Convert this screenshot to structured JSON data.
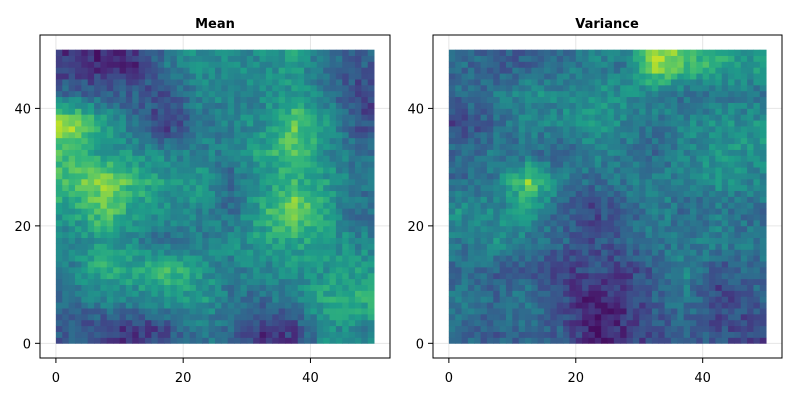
{
  "chart_data": [
    {
      "type": "heatmap",
      "title": "Mean",
      "xlabel": "",
      "ylabel": "",
      "xlim": [
        -2.5,
        52.5
      ],
      "ylim": [
        -2.5,
        52.5
      ],
      "xticks": [
        0,
        20,
        40
      ],
      "yticks": [
        0,
        20,
        40
      ],
      "grid": true,
      "colormap": "viridis",
      "extent": {
        "x": [
          0,
          50
        ],
        "y": [
          0,
          50
        ]
      },
      "cells": 50,
      "coarse_grid_note_rows": "top-to-bottom",
      "values_coarse": [
        [
          0.15,
          0.1,
          0.15,
          0.4,
          0.5,
          0.45,
          0.5,
          0.55,
          0.35,
          0.3
        ],
        [
          0.35,
          0.3,
          0.3,
          0.25,
          0.45,
          0.45,
          0.45,
          0.55,
          0.4,
          0.2
        ],
        [
          0.85,
          0.6,
          0.35,
          0.15,
          0.4,
          0.45,
          0.5,
          0.75,
          0.55,
          0.25
        ],
        [
          0.7,
          0.55,
          0.5,
          0.45,
          0.45,
          0.4,
          0.6,
          0.7,
          0.5,
          0.35
        ],
        [
          0.7,
          0.85,
          0.65,
          0.55,
          0.55,
          0.35,
          0.5,
          0.65,
          0.55,
          0.4
        ],
        [
          0.55,
          0.75,
          0.55,
          0.5,
          0.45,
          0.35,
          0.6,
          0.85,
          0.55,
          0.35
        ],
        [
          0.45,
          0.55,
          0.45,
          0.35,
          0.4,
          0.5,
          0.55,
          0.6,
          0.55,
          0.45
        ],
        [
          0.45,
          0.65,
          0.6,
          0.7,
          0.55,
          0.4,
          0.45,
          0.5,
          0.5,
          0.55
        ],
        [
          0.35,
          0.45,
          0.45,
          0.5,
          0.55,
          0.4,
          0.35,
          0.45,
          0.6,
          0.65
        ],
        [
          0.3,
          0.2,
          0.15,
          0.25,
          0.4,
          0.35,
          0.15,
          0.2,
          0.5,
          0.45
        ]
      ]
    },
    {
      "type": "heatmap",
      "title": "Variance",
      "xlabel": "",
      "ylabel": "",
      "xlim": [
        -2.5,
        52.5
      ],
      "ylim": [
        -2.5,
        52.5
      ],
      "xticks": [
        0,
        20,
        40
      ],
      "yticks": [
        0,
        20,
        40
      ],
      "grid": true,
      "colormap": "viridis",
      "extent": {
        "x": [
          0,
          50
        ],
        "y": [
          0,
          50
        ]
      },
      "cells": 50,
      "coarse_grid_note_rows": "top-to-bottom",
      "values_coarse": [
        [
          0.35,
          0.3,
          0.3,
          0.35,
          0.45,
          0.4,
          0.9,
          0.7,
          0.6,
          0.55
        ],
        [
          0.35,
          0.4,
          0.5,
          0.45,
          0.5,
          0.5,
          0.45,
          0.35,
          0.4,
          0.4
        ],
        [
          0.2,
          0.35,
          0.45,
          0.45,
          0.55,
          0.45,
          0.4,
          0.45,
          0.5,
          0.5
        ],
        [
          0.35,
          0.4,
          0.35,
          0.3,
          0.45,
          0.4,
          0.35,
          0.45,
          0.55,
          0.5
        ],
        [
          0.35,
          0.4,
          0.8,
          0.45,
          0.35,
          0.4,
          0.45,
          0.4,
          0.5,
          0.45
        ],
        [
          0.5,
          0.45,
          0.55,
          0.3,
          0.2,
          0.3,
          0.45,
          0.35,
          0.4,
          0.35
        ],
        [
          0.4,
          0.5,
          0.4,
          0.35,
          0.25,
          0.3,
          0.4,
          0.4,
          0.45,
          0.4
        ],
        [
          0.35,
          0.3,
          0.3,
          0.15,
          0.25,
          0.2,
          0.3,
          0.45,
          0.25,
          0.35
        ],
        [
          0.4,
          0.35,
          0.4,
          0.25,
          0.1,
          0.15,
          0.3,
          0.4,
          0.2,
          0.3
        ],
        [
          0.35,
          0.3,
          0.35,
          0.3,
          0.1,
          0.15,
          0.25,
          0.3,
          0.25,
          0.2
        ]
      ]
    }
  ]
}
